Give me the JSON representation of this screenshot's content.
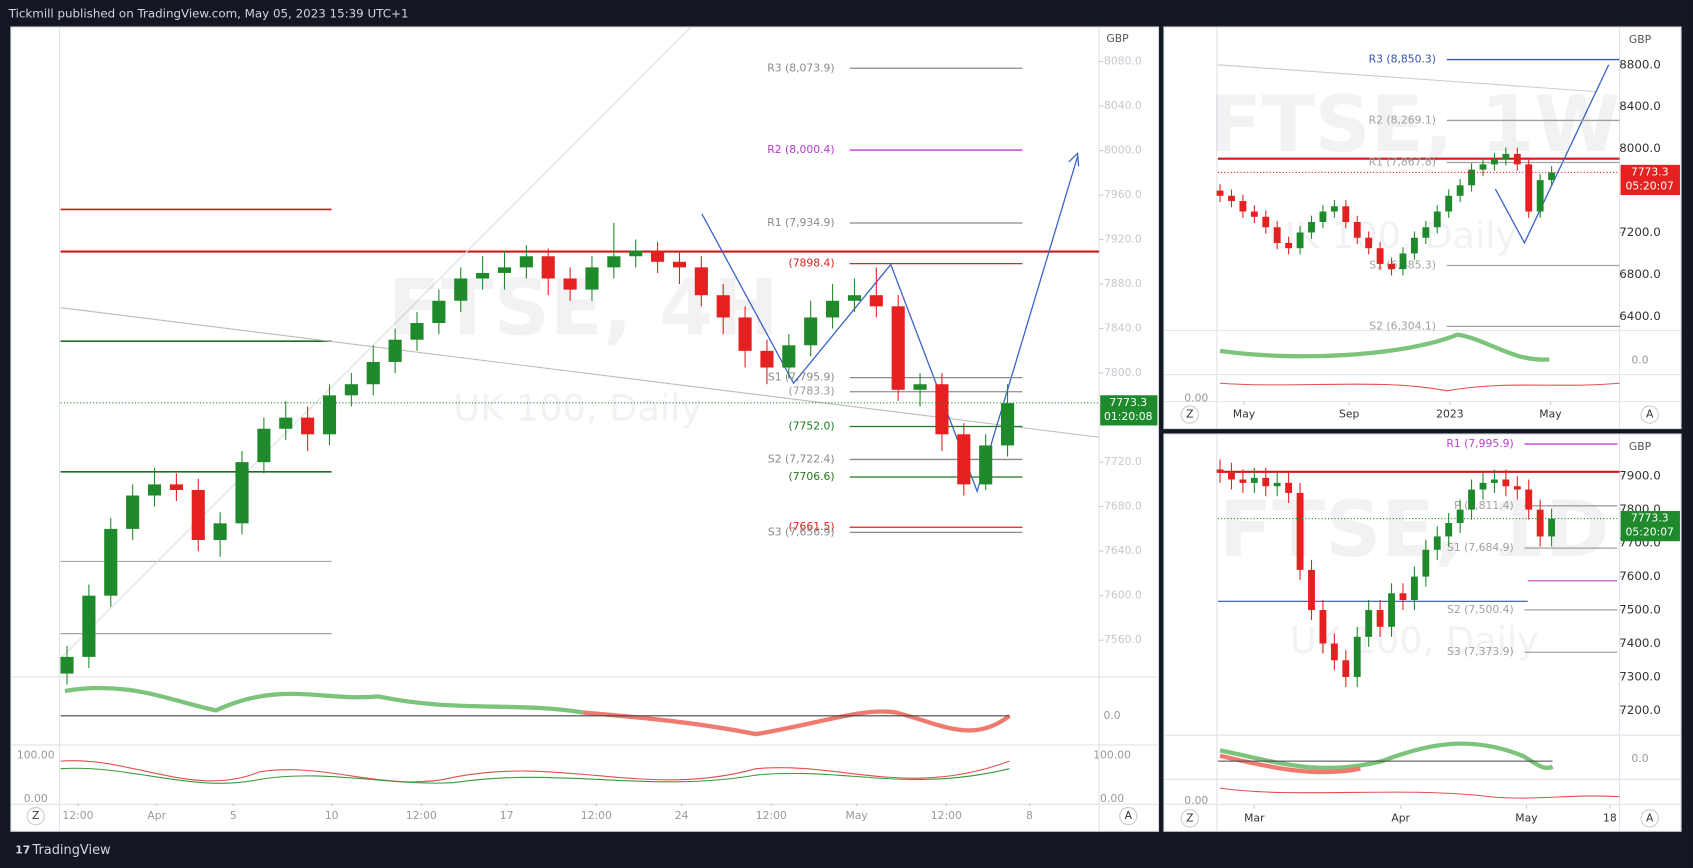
{
  "header": {
    "text": "Tickmill published on TradingView.com, May 05, 2023 15:39 UTC+1"
  },
  "footer": {
    "brand": "TradingView"
  },
  "buttons": {
    "zoom": "Z",
    "auto": "A"
  },
  "chart_data": [
    {
      "type": "candlestick",
      "title": "FTSE, 4H",
      "subtitle": "UK 100, Daily",
      "currency": "GBP",
      "up_color": "#1f8a2b",
      "down_color": "#e52020",
      "ylim": [
        7527,
        8111
      ],
      "yticks": [
        {
          "value": 8080,
          "label": "8080.0"
        },
        {
          "value": 8040,
          "label": "8040.0"
        },
        {
          "value": 8000,
          "label": "8000.0"
        },
        {
          "value": 7960,
          "label": "7960.0"
        },
        {
          "value": 7920,
          "label": "7920.0"
        },
        {
          "value": 7880,
          "label": "7880.0"
        },
        {
          "value": 7840,
          "label": "7840.0"
        },
        {
          "value": 7800,
          "label": "7800.0"
        },
        {
          "value": 7720,
          "label": "7720.0"
        },
        {
          "value": 7680,
          "label": "7680.0"
        },
        {
          "value": 7640,
          "label": "7640.0"
        },
        {
          "value": 7600,
          "label": "7600.0"
        },
        {
          "value": 7560,
          "label": "7560.0"
        }
      ],
      "xticks": [
        {
          "value": 0.5,
          "label": "12:00"
        },
        {
          "value": 4.1,
          "label": "Apr"
        },
        {
          "value": 7.6,
          "label": "5"
        },
        {
          "value": 12.1,
          "label": "10"
        },
        {
          "value": 16.2,
          "label": "12:00"
        },
        {
          "value": 20.1,
          "label": "17"
        },
        {
          "value": 24.2,
          "label": "12:00"
        },
        {
          "value": 28.1,
          "label": "24"
        },
        {
          "value": 32.2,
          "label": "12:00"
        },
        {
          "value": 36.1,
          "label": "May"
        },
        {
          "value": 40.2,
          "label": "12:00"
        },
        {
          "value": 44,
          "label": "8"
        }
      ],
      "open": [
        7530,
        7545,
        7600,
        7660,
        7690,
        7700,
        7695,
        7650,
        7665,
        7720,
        7750,
        7760,
        7745,
        7780,
        7790,
        7810,
        7830,
        7845,
        7865,
        7885,
        7890,
        7895,
        7905,
        7885,
        7875,
        7895,
        7905,
        7910,
        7900,
        7895,
        7870,
        7850,
        7820,
        7805,
        7825,
        7850,
        7865,
        7870,
        7860,
        7785,
        7790,
        7745,
        7700,
        7735
      ],
      "high": [
        7555,
        7610,
        7670,
        7700,
        7715,
        7710,
        7705,
        7675,
        7730,
        7760,
        7775,
        7770,
        7790,
        7800,
        7825,
        7840,
        7855,
        7875,
        7895,
        7905,
        7910,
        7915,
        7912,
        7895,
        7905,
        7935,
        7920,
        7918,
        7910,
        7905,
        7880,
        7860,
        7830,
        7835,
        7865,
        7880,
        7885,
        7895,
        7870,
        7800,
        7800,
        7755,
        7745,
        7790
      ],
      "low": [
        7520,
        7535,
        7590,
        7650,
        7680,
        7685,
        7640,
        7635,
        7655,
        7710,
        7740,
        7730,
        7735,
        7770,
        7780,
        7800,
        7820,
        7835,
        7855,
        7875,
        7875,
        7885,
        7870,
        7865,
        7865,
        7885,
        7895,
        7890,
        7880,
        7860,
        7835,
        7805,
        7790,
        7795,
        7815,
        7840,
        7855,
        7850,
        7775,
        7770,
        7730,
        7690,
        7695,
        7725
      ],
      "close": [
        7545,
        7600,
        7660,
        7690,
        7700,
        7695,
        7650,
        7665,
        7720,
        7750,
        7760,
        7745,
        7780,
        7790,
        7810,
        7830,
        7845,
        7865,
        7885,
        7890,
        7895,
        7905,
        7885,
        7875,
        7895,
        7905,
        7910,
        7900,
        7895,
        7870,
        7850,
        7820,
        7805,
        7825,
        7850,
        7865,
        7870,
        7860,
        7785,
        7790,
        7745,
        7700,
        7735,
        7773
      ],
      "levels": [
        {
          "value": 8073.9,
          "label": "R3 (8,073.9)",
          "color": "#8a8a8a"
        },
        {
          "value": 8000.4,
          "label": "R2 (8,000.4)",
          "color": "#b33cc8"
        },
        {
          "value": 7934.9,
          "label": "R1 (7,934.9)",
          "color": "#8a8a8a"
        },
        {
          "value": 7898.4,
          "label": "(7898.4)",
          "color": "#e52020"
        },
        {
          "value": 7795.9,
          "label": "S1 (7,795.9)",
          "color": "#8a8a8a"
        },
        {
          "value": 7783.3,
          "label": "(7783.3)",
          "color": "#9a9a9a"
        },
        {
          "value": 7752.0,
          "label": "(7752.0)",
          "color": "#1f7a1f"
        },
        {
          "value": 7722.4,
          "label": "S2 (7,722.4)",
          "color": "#8a8a8a"
        },
        {
          "value": 7706.6,
          "label": "(7706.6)",
          "color": "#1f7a1f"
        },
        {
          "value": 7661.5,
          "label": "(7661.5)",
          "color": "#e52020"
        },
        {
          "value": 7656.9,
          "label": "S3 (7,656.9)",
          "color": "#8a8a8a"
        }
      ],
      "last_price": 7773.3,
      "countdown": "01:20:08",
      "tag_color": "#1f8a2b",
      "osc_labels": [
        "0.0",
        "100.00",
        "0.00"
      ]
    },
    {
      "type": "candlestick",
      "title": "FTSE, 1W",
      "subtitle": "UK 100, Daily",
      "currency": "GBP",
      "up_color": "#1f8a2b",
      "down_color": "#e52020",
      "ylim": [
        6266,
        9161
      ],
      "yticks": [
        {
          "value": 8800,
          "label": "8800.0"
        },
        {
          "value": 8400,
          "label": "8400.0"
        },
        {
          "value": 8000,
          "label": "8000.0"
        },
        {
          "value": 7200,
          "label": "7200.0"
        },
        {
          "value": 6800,
          "label": "6800.0"
        },
        {
          "value": 6400,
          "label": "6400.0"
        }
      ],
      "xticks": [
        {
          "value": 2.1,
          "label": "May"
        },
        {
          "value": 11.3,
          "label": "Sep"
        },
        {
          "value": 20.1,
          "label": "2023"
        },
        {
          "value": 28.9,
          "label": "May"
        }
      ],
      "open": [
        7600,
        7550,
        7500,
        7400,
        7350,
        7250,
        7100,
        7050,
        7200,
        7300,
        7400,
        7450,
        7300,
        7150,
        7050,
        6900,
        6850,
        7000,
        7150,
        7250,
        7400,
        7550,
        7650,
        7800,
        7850,
        7900,
        7950,
        7850,
        7400,
        7700
      ],
      "high": [
        7660,
        7610,
        7560,
        7460,
        7410,
        7310,
        7160,
        7260,
        7360,
        7460,
        7510,
        7510,
        7360,
        7210,
        7110,
        6960,
        7060,
        7210,
        7310,
        7460,
        7610,
        7710,
        7860,
        7910,
        7960,
        8010,
        8010,
        7910,
        7760,
        7833
      ],
      "low": [
        7490,
        7440,
        7340,
        7290,
        7190,
        7040,
        6990,
        6990,
        7140,
        7240,
        7340,
        7240,
        7090,
        6990,
        6840,
        6790,
        6790,
        6940,
        7090,
        7190,
        7340,
        7490,
        7590,
        7740,
        7790,
        7840,
        7790,
        7340,
        7340,
        7640
      ],
      "close": [
        7550,
        7500,
        7400,
        7350,
        7250,
        7100,
        7050,
        7200,
        7300,
        7400,
        7450,
        7300,
        7150,
        7050,
        6900,
        6850,
        7000,
        7150,
        7250,
        7400,
        7550,
        7650,
        7800,
        7850,
        7900,
        7950,
        7850,
        7400,
        7700,
        7773
      ],
      "levels": [
        {
          "value": 8850.3,
          "label": "R3 (8,850.3)",
          "color": "#3355aa"
        },
        {
          "value": 8269.1,
          "label": "R2 (8,269.1)",
          "color": "#a0a0a0"
        },
        {
          "value": 7867.8,
          "label": "R1 (7,867.8)",
          "color": "#a0a0a0"
        },
        {
          "value": 6885.3,
          "label": "S1 (6,885.3)",
          "color": "#a0a0a0"
        },
        {
          "value": 6304.1,
          "label": "S2 (6,304.1)",
          "color": "#a0a0a0"
        }
      ],
      "last_price": 7773.3,
      "countdown": "05:20:07",
      "tag_color": "#e52020",
      "osc_labels": [
        "0.0",
        "0.00"
      ]
    },
    {
      "type": "candlestick",
      "title": "FTSE, 1D",
      "subtitle": "UK 100, Daily",
      "currency": "GBP",
      "up_color": "#1f8a2b",
      "down_color": "#e52020",
      "ylim": [
        7126,
        8026
      ],
      "yticks": [
        {
          "value": 7900,
          "label": "7900.0"
        },
        {
          "value": 7800,
          "label": "7800.0"
        },
        {
          "value": 7700,
          "label": "7700.0"
        },
        {
          "value": 7600,
          "label": "7600.0"
        },
        {
          "value": 7500,
          "label": "7500.0"
        },
        {
          "value": 7400,
          "label": "7400.0"
        },
        {
          "value": 7300,
          "label": "7300.0"
        },
        {
          "value": 7200,
          "label": "7200.0"
        }
      ],
      "xticks": [
        {
          "value": 3.0,
          "label": "Mar"
        },
        {
          "value": 15.8,
          "label": "Apr"
        },
        {
          "value": 26.8,
          "label": "May"
        },
        {
          "value": 34.1,
          "label": "18"
        }
      ],
      "open": [
        7920,
        7910,
        7890,
        7880,
        7895,
        7870,
        7880,
        7850,
        7620,
        7500,
        7400,
        7350,
        7300,
        7420,
        7500,
        7450,
        7550,
        7530,
        7600,
        7680,
        7720,
        7760,
        7800,
        7860,
        7880,
        7890,
        7870,
        7860,
        7800,
        7720
      ],
      "high": [
        7950,
        7940,
        7920,
        7925,
        7925,
        7910,
        7910,
        7880,
        7650,
        7530,
        7430,
        7380,
        7450,
        7530,
        7530,
        7580,
        7580,
        7630,
        7710,
        7750,
        7790,
        7830,
        7890,
        7910,
        7920,
        7920,
        7900,
        7890,
        7830,
        7803
      ],
      "low": [
        7880,
        7860,
        7850,
        7850,
        7840,
        7840,
        7820,
        7590,
        7470,
        7370,
        7320,
        7270,
        7270,
        7390,
        7420,
        7420,
        7500,
        7500,
        7570,
        7650,
        7690,
        7730,
        7770,
        7830,
        7850,
        7840,
        7830,
        7770,
        7690,
        7690
      ],
      "close": [
        7910,
        7890,
        7880,
        7895,
        7870,
        7880,
        7850,
        7620,
        7500,
        7400,
        7350,
        7300,
        7420,
        7500,
        7450,
        7550,
        7530,
        7600,
        7680,
        7720,
        7760,
        7800,
        7860,
        7880,
        7890,
        7870,
        7860,
        7800,
        7720,
        7773
      ],
      "levels": [
        {
          "value": 7995.9,
          "label": "R1 (7,995.9)",
          "color": "#c040d0"
        },
        {
          "value": 7811.4,
          "label": "P (7,811.4)",
          "color": "#a0a0a0"
        },
        {
          "value": 7684.9,
          "label": "S1 (7,684.9)",
          "color": "#a0a0a0"
        },
        {
          "value": 7500.4,
          "label": "S2 (7,500.4)",
          "color": "#a0a0a0"
        },
        {
          "value": 7373.9,
          "label": "S3 (7,373.9)",
          "color": "#a0a0a0"
        }
      ],
      "last_price": 7773.3,
      "countdown": "05:20:07",
      "tag_color": "#1f8a2b",
      "osc_labels": [
        "0.0",
        "0.00"
      ]
    }
  ]
}
